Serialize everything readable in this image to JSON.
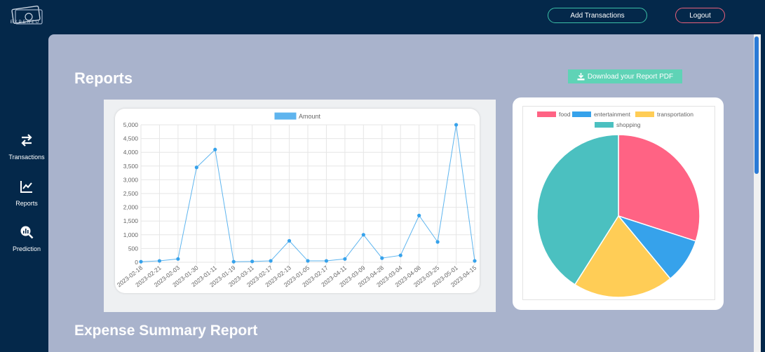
{
  "header": {
    "logo_text": "EXPENZO",
    "add_transactions_label": "Add Transactions",
    "logout_label": "Logout",
    "accent_add": "#3bbfa7",
    "accent_logout": "#e8607a"
  },
  "sidebar": {
    "items": [
      {
        "label": "Transactions",
        "icon": "swap-arrows-icon"
      },
      {
        "label": "Reports",
        "icon": "line-chart-icon"
      },
      {
        "label": "Prediction",
        "icon": "analytics-search-icon"
      }
    ]
  },
  "main": {
    "reports_title": "Reports",
    "download_label": "Download your Report PDF",
    "summary_title": "Expense Summary Report"
  },
  "chart_data": [
    {
      "type": "line",
      "legend": [
        "Amount"
      ],
      "x": [
        "2023-02-18",
        "2023-02-21",
        "2023-02-03",
        "2023-01-30",
        "2023-01-11",
        "2023-01-19",
        "2023-03-11",
        "2023-02-17",
        "2023-02-13",
        "2023-01-05",
        "2023-02-17",
        "2023-04-11",
        "2023-03-09",
        "2023-04-28",
        "2023-03-04",
        "2023-04-08",
        "2023-03-25",
        "2023-05-01",
        "2023-04-15"
      ],
      "series": [
        {
          "name": "Amount",
          "color": "#36a2eb",
          "values": [
            20,
            50,
            120,
            3450,
            4100,
            20,
            30,
            50,
            780,
            50,
            50,
            120,
            1000,
            150,
            250,
            1700,
            740,
            5000,
            50
          ]
        }
      ],
      "y_ticks": [
        "0",
        "500",
        "1,000",
        "1,500",
        "2,000",
        "2,500",
        "3,000",
        "3,500",
        "4,000",
        "4,500",
        "5,000"
      ],
      "ylim": [
        0,
        5000
      ],
      "grid": true,
      "legend_position": "top"
    },
    {
      "type": "pie",
      "legend_position": "top",
      "labels": [
        "food",
        "entertainment",
        "transportation",
        "shopping"
      ],
      "values": [
        30,
        9,
        20,
        41
      ],
      "colors": [
        "#ff6384",
        "#36a2eb",
        "#ffcd56",
        "#4bc0c0"
      ]
    }
  ]
}
